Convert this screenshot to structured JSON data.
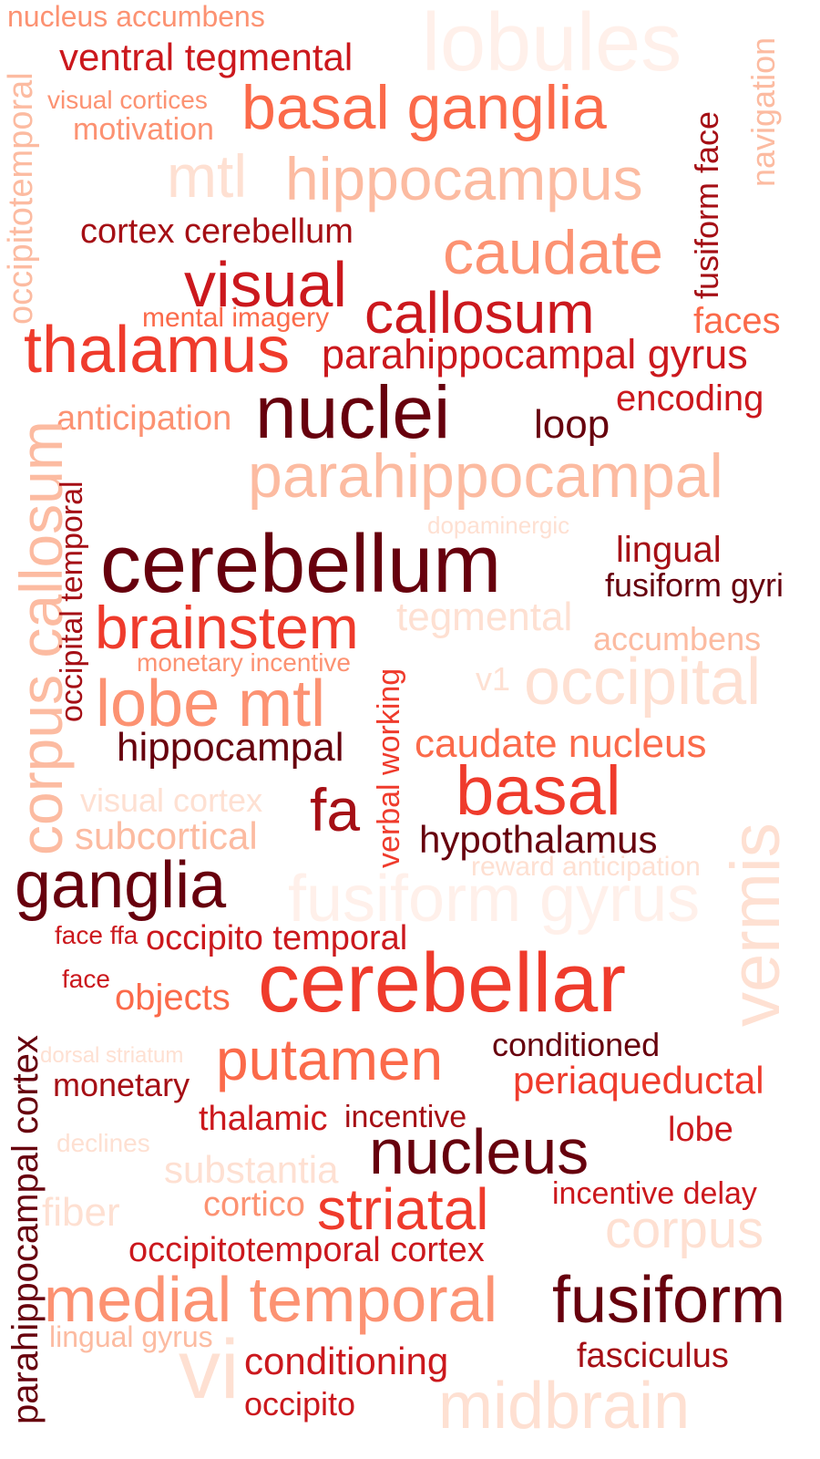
{
  "colors": {
    "c1": "#67000d",
    "c2": "#a50f15",
    "c3": "#cb181d",
    "c4": "#ef3b2c",
    "c5": "#fb6a4a",
    "c6": "#fc9272",
    "c7": "#fcbba1",
    "c8": "#fee0d2",
    "c9": "#fff0ea"
  },
  "words": [
    "nucleus accumbens",
    "lobules",
    "ventral tegmental",
    "navigation",
    "visual cortices",
    "basal ganglia",
    "motivation",
    "occipitotemporal",
    "fusiform face",
    "mtl",
    "hippocampus",
    "cortex cerebellum",
    "caudate",
    "visual",
    "callosum",
    "mental imagery",
    "faces",
    "thalamus",
    "parahippocampal gyrus",
    "encoding",
    "anticipation",
    "nuclei",
    "loop",
    "corpus callosum",
    "parahippocampal",
    "occipital temporal",
    "dopaminergic",
    "cerebellum",
    "lingual",
    "fusiform gyri",
    "tegmental",
    "brainstem",
    "accumbens",
    "monetary incentive",
    "verbal working",
    "v1",
    "occipital",
    "lobe mtl",
    "hippocampal",
    "caudate nucleus",
    "vermis",
    "basal",
    "visual cortex",
    "fa",
    "subcortical",
    "hypothalamus",
    "reward anticipation",
    "ganglia",
    "fusiform gyrus",
    "face ffa",
    "occipito temporal",
    "parahippocampal cortex",
    "face",
    "cerebellar",
    "objects",
    "dorsal striatum",
    "conditioned",
    "putamen",
    "periaqueductal",
    "monetary",
    "thalamic",
    "incentive",
    "lobe",
    "declines",
    "nucleus",
    "substantia",
    "incentive delay",
    "fiber",
    "cortico",
    "striatal",
    "corpus",
    "occipitotemporal cortex",
    "medial temporal",
    "fusiform",
    "lingual gyrus",
    "vi",
    "conditioning",
    "fasciculus",
    "occipito",
    "midbrain"
  ]
}
